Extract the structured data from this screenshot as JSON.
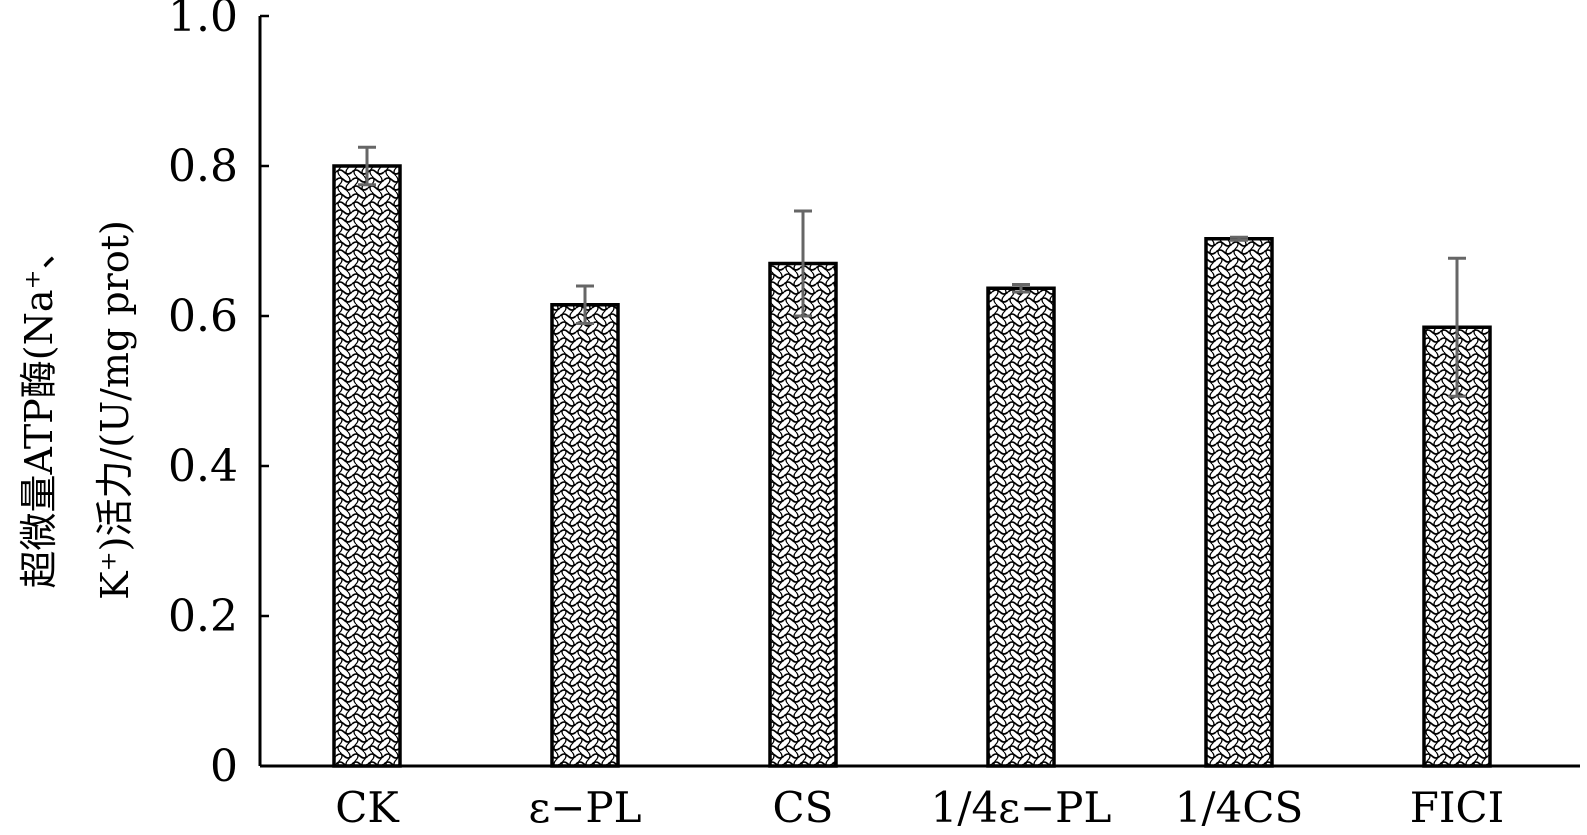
{
  "chart_data": {
    "type": "bar",
    "categories": [
      "CK",
      "ε−PL",
      "CS",
      "1/4ε−PL",
      "1/4CS",
      "FICI"
    ],
    "values": [
      0.8,
      0.615,
      0.67,
      0.637,
      0.703,
      0.585
    ],
    "errors": [
      0.025,
      0.025,
      0.07,
      0.005,
      0.002,
      0.092
    ],
    "ylabel_line1": "超微量ATP酶(Na⁺、",
    "ylabel_line2": "K⁺)活力/(U/mg prot)",
    "ylim": [
      0,
      1.0
    ],
    "yticks": [
      0,
      0.2,
      0.4,
      0.6,
      0.8,
      1.0
    ],
    "ytick_labels": [
      "0",
      "0.2",
      "0.4",
      "0.6",
      "0.8",
      "1.0"
    ],
    "bar_pattern": "crosshatch",
    "error_bar_color": "#666666",
    "grid": false,
    "legend": "none"
  }
}
